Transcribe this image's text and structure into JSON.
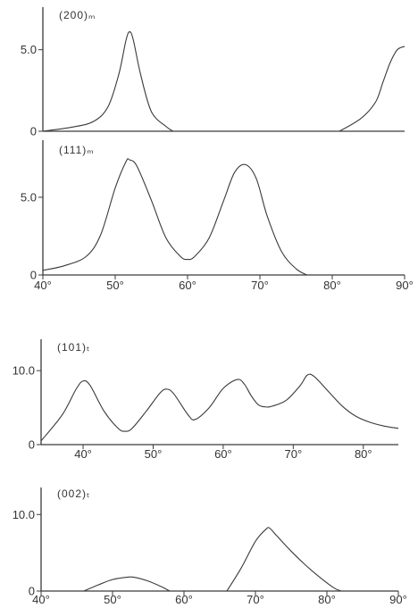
{
  "chart_data": [
    {
      "type": "line",
      "title": "(200)ₘ",
      "xlim": [
        40,
        90
      ],
      "ylim": [
        0,
        7.5
      ],
      "yticks": [
        {
          "value": 0,
          "label": "0"
        },
        {
          "value": 5.0,
          "label": "5.0"
        }
      ],
      "xticks": [],
      "series": [
        {
          "x": [
            40,
            44,
            47,
            49,
            50.5,
            51.5,
            52,
            52.5,
            53.5,
            55,
            57,
            58
          ],
          "y": [
            0,
            0.25,
            0.6,
            1.5,
            3.5,
            5.6,
            6.1,
            5.6,
            3.5,
            1.2,
            0.3,
            0
          ]
        },
        {
          "x": [
            81,
            84,
            86,
            87,
            88,
            89,
            90
          ],
          "y": [
            0,
            0.8,
            1.8,
            3.0,
            4.2,
            5.0,
            5.2
          ]
        }
      ]
    },
    {
      "type": "line",
      "title": "(111)ₘ",
      "xlim": [
        40,
        90
      ],
      "ylim": [
        0,
        8.5
      ],
      "yticks": [
        {
          "value": 0,
          "label": "0"
        },
        {
          "value": 5.0,
          "label": "5.0"
        }
      ],
      "xticks": [
        {
          "value": 40,
          "label": "40°"
        },
        {
          "value": 50,
          "label": "50°"
        },
        {
          "value": 60,
          "label": "60°"
        },
        {
          "value": 70,
          "label": "70°"
        },
        {
          "value": 80,
          "label": "80°"
        },
        {
          "value": 90,
          "label": "90°"
        }
      ],
      "series": [
        {
          "x": [
            40,
            43,
            46,
            48,
            50,
            51.5,
            52,
            53,
            55,
            57,
            59,
            60,
            61,
            63,
            65,
            66.5,
            68,
            69.5,
            71,
            73,
            75,
            76.5
          ],
          "y": [
            0.3,
            0.6,
            1.2,
            2.6,
            5.6,
            7.3,
            7.4,
            7.0,
            4.8,
            2.4,
            1.2,
            1.0,
            1.2,
            2.4,
            4.8,
            6.6,
            7.1,
            6.2,
            3.8,
            1.5,
            0.4,
            0
          ]
        }
      ]
    },
    {
      "type": "line",
      "title": "(101)ₜ",
      "xlim": [
        34,
        85
      ],
      "ylim": [
        0,
        14
      ],
      "yticks": [
        {
          "value": 0,
          "label": "0"
        },
        {
          "value": 10.0,
          "label": "10.0"
        }
      ],
      "xticks": [
        {
          "value": 40,
          "label": "40°"
        },
        {
          "value": 50,
          "label": "50°"
        },
        {
          "value": 60,
          "label": "60°"
        },
        {
          "value": 70,
          "label": "70°"
        },
        {
          "value": 80,
          "label": "80°"
        }
      ],
      "series": [
        {
          "x": [
            34,
            37,
            39,
            40,
            41,
            43,
            45,
            46,
            47,
            49,
            51,
            52,
            53,
            55,
            56,
            58,
            60,
            62,
            63,
            64,
            65,
            66,
            67,
            69,
            71,
            72,
            73,
            75,
            77,
            79,
            81,
            83,
            85
          ],
          "y": [
            0.5,
            4.0,
            7.5,
            8.6,
            8.0,
            4.5,
            2.2,
            1.8,
            2.2,
            4.5,
            7.0,
            7.5,
            6.8,
            4.0,
            3.4,
            5.0,
            7.6,
            8.8,
            8.2,
            6.6,
            5.4,
            5.1,
            5.2,
            6.0,
            8.0,
            9.4,
            9.2,
            7.2,
            5.2,
            3.8,
            3.0,
            2.5,
            2.2
          ]
        }
      ]
    },
    {
      "type": "line",
      "title": "(002)ₜ",
      "xlim": [
        40,
        90
      ],
      "ylim": [
        0,
        14
      ],
      "yticks": [
        {
          "value": 0,
          "label": "0"
        },
        {
          "value": 10.0,
          "label": "10.0"
        }
      ],
      "xticks": [
        {
          "value": 40,
          "label": "40°"
        },
        {
          "value": 50,
          "label": "50°"
        },
        {
          "value": 60,
          "label": "60°"
        },
        {
          "value": 70,
          "label": "70°"
        },
        {
          "value": 80,
          "label": "80°"
        },
        {
          "value": 90,
          "label": "90°"
        }
      ],
      "series": [
        {
          "x": [
            46,
            48,
            50,
            52,
            53,
            55,
            57,
            58
          ],
          "y": [
            0,
            0.8,
            1.5,
            1.8,
            1.8,
            1.3,
            0.5,
            0
          ]
        },
        {
          "x": [
            66,
            68,
            70,
            71.5,
            72,
            73,
            75,
            77,
            79,
            81,
            82
          ],
          "y": [
            0,
            3.0,
            6.5,
            8.1,
            8.2,
            7.2,
            5.2,
            3.4,
            1.8,
            0.4,
            0
          ]
        }
      ]
    }
  ]
}
